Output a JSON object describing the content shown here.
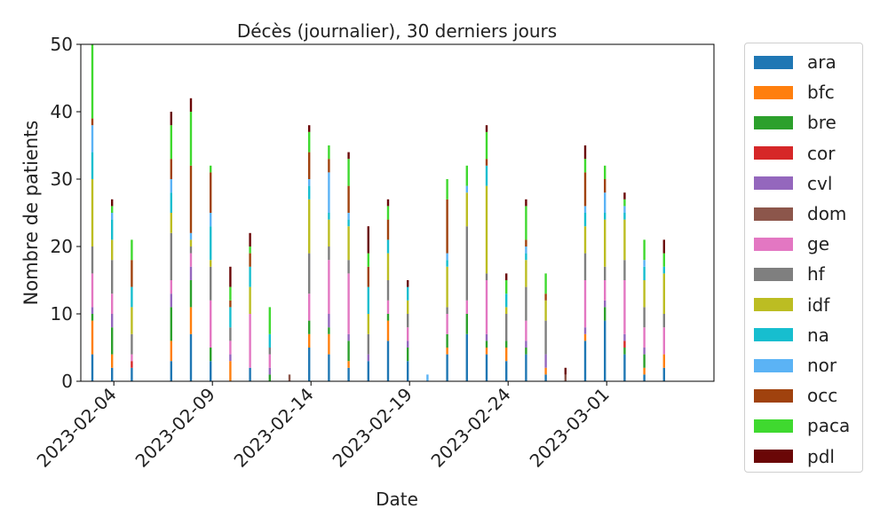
{
  "chart_data": {
    "type": "bar",
    "stacked": true,
    "title": "Décès (journalier), 30 derniers jours",
    "xlabel": "Date",
    "ylabel": "Nombre de patients",
    "ylim": [
      0,
      50
    ],
    "yticks": [
      0,
      10,
      20,
      30,
      40,
      50
    ],
    "xticks": [
      "2023-02-04",
      "2023-02-09",
      "2023-02-14",
      "2023-02-19",
      "2023-02-24",
      "2023-03-01"
    ],
    "grid": false,
    "legend_placement": "outside-right",
    "categories": [
      "2023-02-03",
      "2023-02-04",
      "2023-02-05",
      "2023-02-06",
      "2023-02-07",
      "2023-02-08",
      "2023-02-09",
      "2023-02-10",
      "2023-02-11",
      "2023-02-12",
      "2023-02-13",
      "2023-02-14",
      "2023-02-15",
      "2023-02-16",
      "2023-02-17",
      "2023-02-18",
      "2023-02-19",
      "2023-02-20",
      "2023-02-21",
      "2023-02-22",
      "2023-02-23",
      "2023-02-24",
      "2023-02-25",
      "2023-02-26",
      "2023-02-27",
      "2023-02-28",
      "2023-03-01",
      "2023-03-02",
      "2023-03-03",
      "2023-03-04"
    ],
    "series": [
      {
        "name": "ara",
        "color": "#1f77b4",
        "values": [
          4,
          2,
          2,
          0,
          3,
          7,
          3,
          0,
          2,
          0,
          0,
          5,
          4,
          2,
          3,
          6,
          3,
          0,
          4,
          7,
          4,
          3,
          4,
          1,
          0,
          6,
          9,
          4,
          1,
          2
        ]
      },
      {
        "name": "bfc",
        "color": "#ff7f0e",
        "values": [
          5,
          2,
          0,
          0,
          3,
          4,
          0,
          3,
          0,
          0,
          0,
          2,
          3,
          1,
          0,
          3,
          0,
          0,
          1,
          0,
          1,
          2,
          0,
          1,
          0,
          1,
          0,
          0,
          1,
          2
        ]
      },
      {
        "name": "bre",
        "color": "#2ca02c",
        "values": [
          1,
          4,
          0,
          0,
          5,
          4,
          2,
          0,
          0,
          1,
          0,
          2,
          1,
          3,
          0,
          1,
          2,
          0,
          2,
          3,
          1,
          1,
          1,
          0,
          0,
          0,
          2,
          1,
          2,
          0
        ]
      },
      {
        "name": "cor",
        "color": "#d62728",
        "values": [
          0,
          0,
          1,
          0,
          0,
          0,
          0,
          0,
          0,
          0,
          0,
          0,
          0,
          0,
          0,
          0,
          0,
          0,
          0,
          0,
          0,
          0,
          0,
          0,
          0,
          0,
          0,
          1,
          0,
          0
        ]
      },
      {
        "name": "cvl",
        "color": "#9467bd",
        "values": [
          1,
          2,
          0,
          0,
          2,
          2,
          0,
          1,
          0,
          1,
          0,
          0,
          2,
          1,
          1,
          0,
          1,
          0,
          0,
          0,
          1,
          0,
          1,
          2,
          0,
          1,
          1,
          1,
          1,
          0
        ]
      },
      {
        "name": "dom",
        "color": "#8c564b",
        "values": [
          0,
          0,
          0,
          0,
          0,
          0,
          0,
          0,
          0,
          0,
          1,
          0,
          0,
          0,
          0,
          0,
          0,
          0,
          0,
          0,
          0,
          0,
          0,
          0,
          1,
          0,
          0,
          0,
          0,
          0
        ]
      },
      {
        "name": "ge",
        "color": "#e377c2",
        "values": [
          5,
          3,
          1,
          0,
          2,
          2,
          7,
          2,
          8,
          2,
          0,
          4,
          8,
          9,
          0,
          2,
          2,
          0,
          3,
          2,
          8,
          0,
          3,
          0,
          0,
          7,
          3,
          8,
          3,
          4
        ]
      },
      {
        "name": "hf",
        "color": "#7f7f7f",
        "values": [
          4,
          5,
          3,
          0,
          7,
          1,
          5,
          2,
          0,
          1,
          0,
          6,
          2,
          2,
          3,
          3,
          2,
          0,
          1,
          11,
          1,
          4,
          5,
          5,
          0,
          4,
          2,
          3,
          3,
          2
        ]
      },
      {
        "name": "idf",
        "color": "#bcbd22",
        "values": [
          10,
          3,
          4,
          0,
          3,
          1,
          1,
          0,
          4,
          0,
          0,
          8,
          4,
          5,
          3,
          4,
          2,
          0,
          6,
          5,
          13,
          1,
          4,
          3,
          0,
          4,
          7,
          6,
          4,
          6
        ]
      },
      {
        "name": "na",
        "color": "#17becf",
        "values": [
          4,
          3,
          3,
          0,
          3,
          0,
          5,
          3,
          3,
          2,
          0,
          2,
          1,
          1,
          4,
          2,
          2,
          0,
          1,
          0,
          3,
          2,
          1,
          0,
          0,
          2,
          1,
          1,
          2,
          1
        ]
      },
      {
        "name": "nor",
        "color": "#5bb3f5",
        "values": [
          4,
          1,
          0,
          0,
          2,
          1,
          2,
          0,
          0,
          0,
          0,
          1,
          6,
          1,
          0,
          0,
          0,
          1,
          1,
          1,
          0,
          0,
          1,
          0,
          0,
          1,
          3,
          1,
          1,
          0
        ]
      },
      {
        "name": "occ",
        "color": "#a0420e",
        "values": [
          1,
          0,
          4,
          0,
          3,
          10,
          6,
          1,
          2,
          0,
          0,
          4,
          2,
          4,
          3,
          3,
          0,
          0,
          8,
          0,
          1,
          0,
          1,
          1,
          0,
          5,
          2,
          0,
          0,
          0
        ]
      },
      {
        "name": "paca",
        "color": "#3fd92f",
        "values": [
          11,
          1,
          3,
          0,
          5,
          8,
          1,
          2,
          1,
          4,
          0,
          3,
          2,
          4,
          2,
          2,
          0,
          0,
          3,
          3,
          4,
          2,
          5,
          3,
          0,
          2,
          2,
          1,
          3,
          2
        ]
      },
      {
        "name": "pdl",
        "color": "#6a0707",
        "values": [
          0,
          1,
          0,
          0,
          2,
          2,
          0,
          3,
          2,
          0,
          0,
          1,
          0,
          1,
          4,
          1,
          1,
          0,
          0,
          0,
          1,
          1,
          1,
          0,
          1,
          2,
          0,
          1,
          0,
          2
        ]
      }
    ]
  }
}
